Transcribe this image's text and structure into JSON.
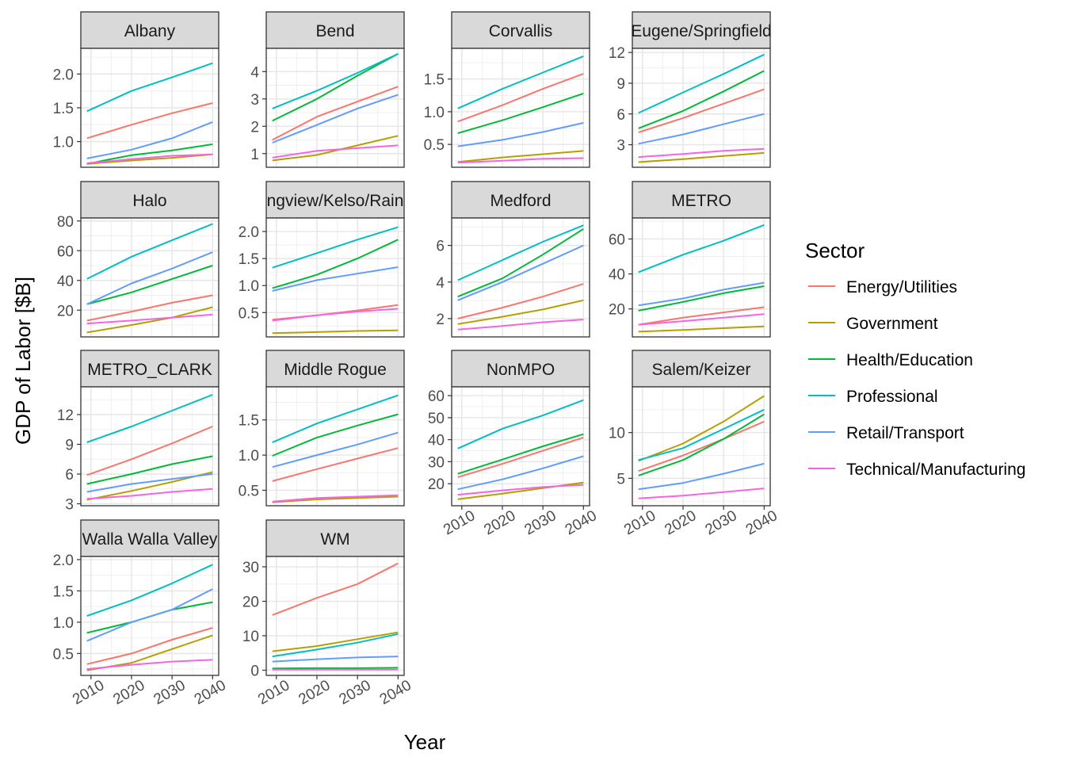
{
  "axes": {
    "xlabel": "Year",
    "ylabel": "GDP of Labor [$B]"
  },
  "legend": {
    "title": "Sector",
    "position": "right"
  },
  "colors": {
    "Energy/Utilities": "#F8766D",
    "Government": "#B79F00",
    "Health/Education": "#00BA38",
    "Professional": "#00BFC4",
    "Retail/Transport": "#619CFF",
    "Technical/Manufacturing": "#F564E3"
  },
  "chart_data": {
    "type": "line",
    "facet": "small multiples, free y scales, 4 columns",
    "grid": true,
    "x_ticks": [
      2010,
      2020,
      2030,
      2040
    ],
    "x_range": [
      2007.5,
      2041.5
    ],
    "series_names": [
      "Energy/Utilities",
      "Government",
      "Health/Education",
      "Professional",
      "Retail/Transport",
      "Technical/Manufacturing"
    ],
    "panels": [
      {
        "name": "Albany",
        "ylim": [
          0.62,
          2.38
        ],
        "y_ticks": [
          1.0,
          1.5,
          2.0
        ],
        "series": {
          "Energy/Utilities": [
            1.05,
            1.25,
            1.42,
            1.57
          ],
          "Government": [
            0.67,
            0.72,
            0.76,
            0.81
          ],
          "Health/Education": [
            0.67,
            0.8,
            0.87,
            0.96
          ],
          "Professional": [
            1.45,
            1.75,
            1.95,
            2.16
          ],
          "Retail/Transport": [
            0.75,
            0.88,
            1.05,
            1.29
          ],
          "Technical/Manufacturing": [
            0.68,
            0.74,
            0.79,
            0.81
          ]
        }
      },
      {
        "name": "Bend",
        "ylim": [
          0.5,
          4.85
        ],
        "y_ticks": [
          1,
          2,
          3,
          4
        ],
        "series": {
          "Energy/Utilities": [
            1.5,
            2.35,
            2.9,
            3.45
          ],
          "Government": [
            0.75,
            0.95,
            1.3,
            1.65
          ],
          "Health/Education": [
            2.2,
            3.0,
            3.85,
            4.65
          ],
          "Professional": [
            2.65,
            3.3,
            3.95,
            4.65
          ],
          "Retail/Transport": [
            1.4,
            2.05,
            2.65,
            3.15
          ],
          "Technical/Manufacturing": [
            0.85,
            1.1,
            1.2,
            1.3
          ]
        }
      },
      {
        "name": "Corvallis",
        "ylim": [
          0.15,
          1.97
        ],
        "y_ticks": [
          0.5,
          1.0,
          1.5
        ],
        "series": {
          "Energy/Utilities": [
            0.85,
            1.1,
            1.35,
            1.58
          ],
          "Government": [
            0.23,
            0.3,
            0.35,
            0.4
          ],
          "Health/Education": [
            0.67,
            0.87,
            1.07,
            1.28
          ],
          "Professional": [
            1.05,
            1.35,
            1.6,
            1.85
          ],
          "Retail/Transport": [
            0.47,
            0.57,
            0.69,
            0.83
          ],
          "Technical/Manufacturing": [
            0.22,
            0.25,
            0.28,
            0.29
          ]
        }
      },
      {
        "name": "Eugene/Springfield",
        "ylim": [
          0.8,
          12.4
        ],
        "y_ticks": [
          3,
          6,
          9,
          12
        ],
        "series": {
          "Energy/Utilities": [
            4.2,
            5.6,
            7.0,
            8.4
          ],
          "Government": [
            1.3,
            1.6,
            1.9,
            2.2
          ],
          "Health/Education": [
            4.6,
            6.3,
            8.2,
            10.2
          ],
          "Professional": [
            6.1,
            8.1,
            9.9,
            11.8
          ],
          "Retail/Transport": [
            3.1,
            4.0,
            5.0,
            6.0
          ],
          "Technical/Manufacturing": [
            1.8,
            2.1,
            2.4,
            2.6
          ]
        }
      },
      {
        "name": "Halo",
        "ylim": [
          2,
          82
        ],
        "y_ticks": [
          20,
          40,
          60,
          80
        ],
        "series": {
          "Energy/Utilities": [
            13,
            19,
            25,
            30
          ],
          "Government": [
            5,
            10,
            15,
            22
          ],
          "Health/Education": [
            24,
            32,
            41,
            50
          ],
          "Professional": [
            41,
            56,
            67,
            78
          ],
          "Retail/Transport": [
            24,
            38,
            48,
            59
          ],
          "Technical/Manufacturing": [
            11,
            13,
            15,
            17
          ]
        }
      },
      {
        "name": "Longview/Kelso/Rainier",
        "ylim": [
          0.05,
          2.25
        ],
        "y_ticks": [
          0.5,
          1.0,
          1.5,
          2.0
        ],
        "series": {
          "Energy/Utilities": [
            0.37,
            0.45,
            0.54,
            0.64
          ],
          "Government": [
            0.12,
            0.14,
            0.16,
            0.17
          ],
          "Health/Education": [
            0.95,
            1.2,
            1.5,
            1.85
          ],
          "Professional": [
            1.33,
            1.6,
            1.85,
            2.08
          ],
          "Retail/Transport": [
            0.9,
            1.1,
            1.22,
            1.34
          ],
          "Technical/Manufacturing": [
            0.35,
            0.45,
            0.52,
            0.57
          ]
        }
      },
      {
        "name": "Medford",
        "ylim": [
          1.0,
          7.5
        ],
        "y_ticks": [
          2,
          4,
          6
        ],
        "series": {
          "Energy/Utilities": [
            2.0,
            2.6,
            3.2,
            3.9
          ],
          "Government": [
            1.7,
            2.1,
            2.5,
            3.0
          ],
          "Health/Education": [
            3.2,
            4.2,
            5.5,
            6.9
          ],
          "Professional": [
            4.1,
            5.2,
            6.2,
            7.1
          ],
          "Retail/Transport": [
            3.0,
            4.0,
            5.0,
            6.0
          ],
          "Technical/Manufacturing": [
            1.4,
            1.6,
            1.8,
            1.95
          ]
        }
      },
      {
        "name": "METRO",
        "ylim": [
          4,
          72
        ],
        "y_ticks": [
          20,
          40,
          60
        ],
        "series": {
          "Energy/Utilities": [
            11,
            15,
            18,
            21
          ],
          "Government": [
            7,
            8,
            9,
            10
          ],
          "Health/Education": [
            19,
            24,
            29,
            33
          ],
          "Professional": [
            41,
            51,
            59,
            68
          ],
          "Retail/Transport": [
            22,
            26,
            31,
            35
          ],
          "Technical/Manufacturing": [
            11,
            13,
            15,
            17
          ]
        }
      },
      {
        "name": "METRO_CLARK",
        "ylim": [
          2.8,
          14.8
        ],
        "y_ticks": [
          3,
          6,
          9,
          12
        ],
        "series": {
          "Energy/Utilities": [
            5.9,
            7.5,
            9.1,
            10.8
          ],
          "Government": [
            3.4,
            4.3,
            5.2,
            6.2
          ],
          "Health/Education": [
            5.0,
            6.0,
            7.0,
            7.8
          ],
          "Professional": [
            9.2,
            10.8,
            12.4,
            14.0
          ],
          "Retail/Transport": [
            4.2,
            5.0,
            5.5,
            6.0
          ],
          "Technical/Manufacturing": [
            3.5,
            3.8,
            4.2,
            4.5
          ]
        }
      },
      {
        "name": "Middle Rogue",
        "ylim": [
          0.28,
          1.97
        ],
        "y_ticks": [
          0.5,
          1.0,
          1.5
        ],
        "series": {
          "Energy/Utilities": [
            0.63,
            0.8,
            0.95,
            1.1
          ],
          "Government": [
            0.33,
            0.37,
            0.39,
            0.41
          ],
          "Health/Education": [
            0.99,
            1.25,
            1.42,
            1.58
          ],
          "Professional": [
            1.18,
            1.45,
            1.65,
            1.85
          ],
          "Retail/Transport": [
            0.83,
            1.0,
            1.15,
            1.32
          ],
          "Technical/Manufacturing": [
            0.34,
            0.39,
            0.41,
            0.43
          ]
        }
      },
      {
        "name": "NonMPO",
        "ylim": [
          10,
          64
        ],
        "y_ticks": [
          20,
          30,
          40,
          50,
          60
        ],
        "series": {
          "Energy/Utilities": [
            23,
            29,
            35,
            41
          ],
          "Government": [
            13,
            15.5,
            18,
            20.5
          ],
          "Health/Education": [
            24.5,
            31,
            37,
            42.5
          ],
          "Professional": [
            36,
            45,
            51,
            58
          ],
          "Retail/Transport": [
            17.5,
            22,
            27,
            32.5
          ],
          "Technical/Manufacturing": [
            15,
            17,
            18.5,
            19.5
          ]
        }
      },
      {
        "name": "Salem/Keizer",
        "ylim": [
          2.0,
          15.0
        ],
        "y_ticks": [
          5,
          10
        ],
        "series": {
          "Energy/Utilities": [
            5.8,
            7.5,
            9.3,
            11.2
          ],
          "Government": [
            6.9,
            8.8,
            11.2,
            14.0
          ],
          "Health/Education": [
            5.3,
            7.0,
            9.3,
            12.0
          ],
          "Professional": [
            7.0,
            8.3,
            10.4,
            12.5
          ],
          "Retail/Transport": [
            3.8,
            4.5,
            5.5,
            6.6
          ],
          "Technical/Manufacturing": [
            2.8,
            3.1,
            3.5,
            3.9
          ]
        }
      },
      {
        "name": "Walla Walla Valley",
        "ylim": [
          0.15,
          2.05
        ],
        "y_ticks": [
          0.5,
          1.0,
          1.5,
          2.0
        ],
        "series": {
          "Energy/Utilities": [
            0.33,
            0.5,
            0.72,
            0.91
          ],
          "Government": [
            0.23,
            0.35,
            0.57,
            0.79
          ],
          "Health/Education": [
            0.83,
            1.0,
            1.2,
            1.32
          ],
          "Professional": [
            1.1,
            1.35,
            1.62,
            1.92
          ],
          "Retail/Transport": [
            0.7,
            1.0,
            1.2,
            1.53
          ],
          "Technical/Manufacturing": [
            0.25,
            0.32,
            0.37,
            0.4
          ]
        }
      },
      {
        "name": "WM",
        "ylim": [
          -1.5,
          33
        ],
        "y_ticks": [
          0,
          10,
          20,
          30
        ],
        "series": {
          "Energy/Utilities": [
            16,
            21,
            25,
            31
          ],
          "Government": [
            5.5,
            7,
            9,
            11
          ],
          "Health/Education": [
            0.5,
            0.6,
            0.6,
            0.7
          ],
          "Professional": [
            4,
            6,
            8,
            10.5
          ],
          "Retail/Transport": [
            2.5,
            3.2,
            3.7,
            4.0
          ],
          "Technical/Manufacturing": [
            0.15,
            0.15,
            0.15,
            0.15
          ]
        }
      }
    ]
  }
}
